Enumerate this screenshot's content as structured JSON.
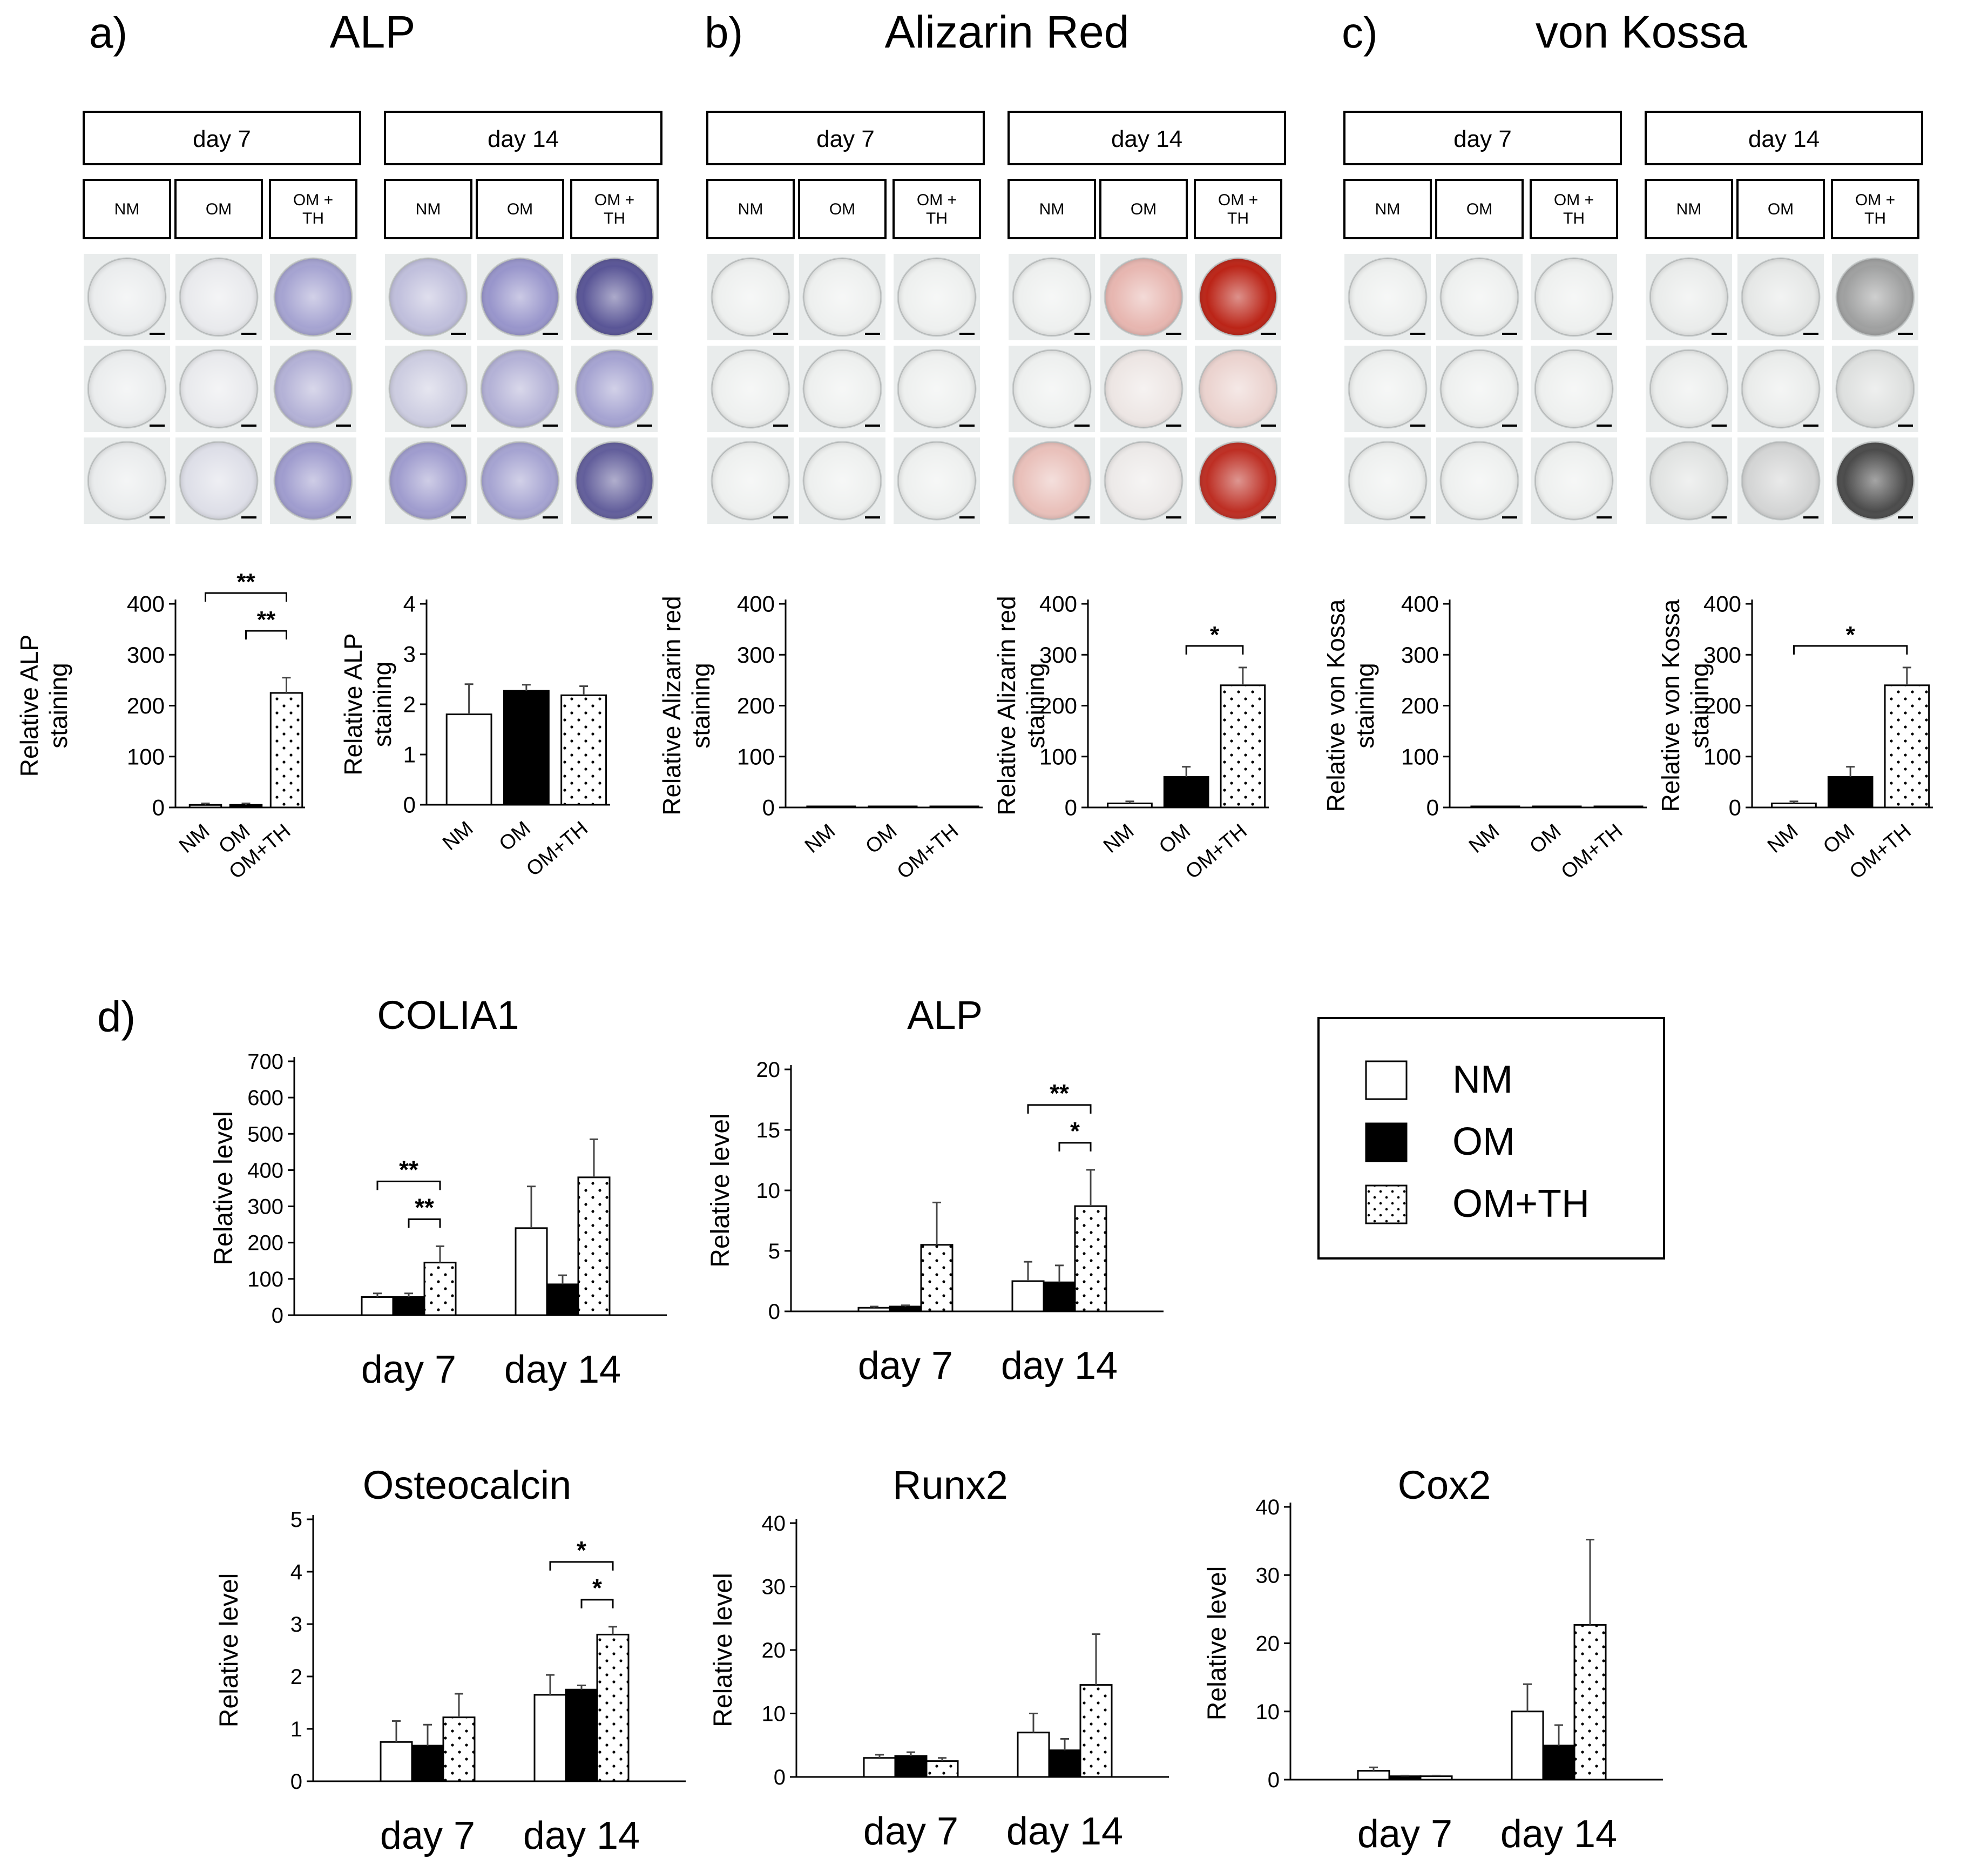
{
  "colors": {
    "axis": "#000000",
    "om_fill": "#000000",
    "nm_fill": "#ffffff",
    "omth_dots": "#000000",
    "alp_stain": "#6a64b8",
    "alp_stain_dark": "#3f3a86",
    "alizarin_stain": "#d8301c",
    "vonkossa_stain": "#6b6b6b",
    "plate_bg": "#e9ecec"
  },
  "legend": {
    "items": [
      {
        "key": "NM",
        "label": "NM"
      },
      {
        "key": "OM",
        "label": "OM"
      },
      {
        "key": "OMTH",
        "label": "OM+TH"
      }
    ]
  },
  "staining_panels": [
    {
      "letter": "a)",
      "title": "ALP",
      "stain": "alp",
      "groups": [
        {
          "day": "day 7",
          "columns": [
            "NM",
            "OM",
            "OM +\nTH"
          ],
          "intensity": [
            [
              0.02,
              0.04,
              0.55
            ],
            [
              0.02,
              0.04,
              0.45
            ],
            [
              0.03,
              0.12,
              0.6
            ]
          ]
        },
        {
          "day": "day 14",
          "columns": [
            "NM",
            "OM",
            "OM +\nTH"
          ],
          "intensity": [
            [
              0.35,
              0.65,
              0.85
            ],
            [
              0.25,
              0.45,
              0.55
            ],
            [
              0.6,
              0.55,
              0.8
            ]
          ]
        }
      ]
    },
    {
      "letter": "b)",
      "title": "Alizarin Red",
      "stain": "alizarin",
      "groups": [
        {
          "day": "day 7",
          "columns": [
            "NM",
            "OM",
            "OM +\nTH"
          ],
          "intensity": [
            [
              0.0,
              0.0,
              0.0
            ],
            [
              0.0,
              0.0,
              0.0
            ],
            [
              0.0,
              0.0,
              0.0
            ]
          ]
        },
        {
          "day": "day 14",
          "columns": [
            "NM",
            "OM",
            "OM +\nTH"
          ],
          "intensity": [
            [
              0.0,
              0.3,
              0.95
            ],
            [
              0.0,
              0.05,
              0.15
            ],
            [
              0.25,
              0.03,
              0.9
            ]
          ]
        }
      ]
    },
    {
      "letter": "c)",
      "title": "von Kossa",
      "stain": "vonkossa",
      "groups": [
        {
          "day": "day 7",
          "columns": [
            "NM",
            "OM",
            "OM +\nTH"
          ],
          "intensity": [
            [
              0.0,
              0.0,
              0.0
            ],
            [
              0.0,
              0.0,
              0.0
            ],
            [
              0.0,
              0.0,
              0.0
            ]
          ]
        },
        {
          "day": "day 14",
          "columns": [
            "NM",
            "OM",
            "OM +\nTH"
          ],
          "intensity": [
            [
              0.03,
              0.06,
              0.6
            ],
            [
              0.02,
              0.03,
              0.12
            ],
            [
              0.1,
              0.2,
              0.85
            ]
          ]
        }
      ]
    }
  ],
  "chart_data": [
    {
      "id": "alp-d7",
      "type": "bar",
      "title": "",
      "ylabel": "Relative  ALP\nstaining",
      "categories": [
        "NM",
        "OM",
        "OM+TH"
      ],
      "values": [
        5,
        5,
        225
      ],
      "errors": [
        3,
        3,
        30
      ],
      "ylim": [
        0,
        400
      ],
      "yticks": [
        0,
        100,
        200,
        300,
        400
      ],
      "significance": [
        {
          "from": 0,
          "to": 2,
          "label": "**"
        },
        {
          "from": 1,
          "to": 2,
          "label": "**"
        }
      ]
    },
    {
      "id": "alp-d14",
      "type": "bar",
      "title": "",
      "ylabel": "Relative  ALP\nstaining",
      "categories": [
        "NM",
        "OM",
        "OM+TH"
      ],
      "values": [
        1.8,
        2.27,
        2.18
      ],
      "errors": [
        0.6,
        0.12,
        0.18
      ],
      "ylim": [
        0,
        4
      ],
      "yticks": [
        0,
        1,
        2,
        3,
        4
      ],
      "significance": []
    },
    {
      "id": "ar-d7",
      "type": "bar",
      "title": "",
      "ylabel": "Relative Alizarin red\nstaining",
      "categories": [
        "NM",
        "OM",
        "OM+TH"
      ],
      "values": [
        0.5,
        0.5,
        0.5
      ],
      "errors": [
        0,
        0,
        0
      ],
      "ylim": [
        0,
        400
      ],
      "yticks": [
        0,
        100,
        200,
        300,
        400
      ],
      "significance": []
    },
    {
      "id": "ar-d14",
      "type": "bar",
      "title": "",
      "ylabel": "Relative Alizarin red\nstaining",
      "categories": [
        "NM",
        "OM",
        "OM+TH"
      ],
      "values": [
        8,
        60,
        240
      ],
      "errors": [
        4,
        20,
        35
      ],
      "ylim": [
        0,
        400
      ],
      "yticks": [
        0,
        100,
        200,
        300,
        400
      ],
      "significance": [
        {
          "from": 1,
          "to": 2,
          "label": "*"
        }
      ]
    },
    {
      "id": "vk-d7",
      "type": "bar",
      "title": "",
      "ylabel": "Relative von Kossa\nstaining",
      "categories": [
        "NM",
        "OM",
        "OM+TH"
      ],
      "values": [
        0.5,
        0.5,
        0.5
      ],
      "errors": [
        0,
        0,
        0
      ],
      "ylim": [
        0,
        400
      ],
      "yticks": [
        0,
        100,
        200,
        300,
        400
      ],
      "significance": []
    },
    {
      "id": "vk-d14",
      "type": "bar",
      "title": "",
      "ylabel": "Relative von Kossa\nstaining",
      "categories": [
        "NM",
        "OM",
        "OM+TH"
      ],
      "values": [
        8,
        60,
        240
      ],
      "errors": [
        4,
        20,
        35
      ],
      "ylim": [
        0,
        400
      ],
      "yticks": [
        0,
        100,
        200,
        300,
        400
      ],
      "significance": [
        {
          "from": 0,
          "to": 2,
          "label": "*"
        }
      ]
    },
    {
      "id": "colia1",
      "type": "bar",
      "title": "COLIA1",
      "ylabel": "Relative level",
      "groups": [
        "day 7",
        "day 14"
      ],
      "series": [
        {
          "name": "NM",
          "values": [
            50,
            240
          ],
          "errors": [
            10,
            115
          ]
        },
        {
          "name": "OM",
          "values": [
            50,
            85
          ],
          "errors": [
            10,
            25
          ]
        },
        {
          "name": "OM+TH",
          "values": [
            145,
            380
          ],
          "errors": [
            45,
            105
          ]
        }
      ],
      "ylim": [
        0,
        700
      ],
      "yticks": [
        0,
        100,
        200,
        300,
        400,
        500,
        600,
        700
      ],
      "significance": [
        {
          "group": 0,
          "from": 0,
          "to": 2,
          "label": "**"
        },
        {
          "group": 0,
          "from": 1,
          "to": 2,
          "label": "**"
        }
      ]
    },
    {
      "id": "alp-gene",
      "type": "bar",
      "title": "ALP",
      "ylabel": "Relative level",
      "groups": [
        "day 7",
        "day 14"
      ],
      "series": [
        {
          "name": "NM",
          "values": [
            0.3,
            2.5
          ],
          "errors": [
            0.1,
            1.6
          ]
        },
        {
          "name": "OM",
          "values": [
            0.4,
            2.4
          ],
          "errors": [
            0.1,
            1.4
          ]
        },
        {
          "name": "OM+TH",
          "values": [
            5.5,
            8.7
          ],
          "errors": [
            3.5,
            3.0
          ]
        }
      ],
      "ylim": [
        0,
        20
      ],
      "yticks": [
        0,
        5,
        10,
        15,
        20
      ],
      "significance": [
        {
          "group": 1,
          "from": 0,
          "to": 2,
          "label": "**"
        },
        {
          "group": 1,
          "from": 1,
          "to": 2,
          "label": "*"
        }
      ]
    },
    {
      "id": "osteocalcin",
      "type": "bar",
      "title": "Osteocalcin",
      "ylabel": "Relative level",
      "groups": [
        "day 7",
        "day 14"
      ],
      "series": [
        {
          "name": "NM",
          "values": [
            0.75,
            1.65
          ],
          "errors": [
            0.4,
            0.38
          ]
        },
        {
          "name": "OM",
          "values": [
            0.68,
            1.75
          ],
          "errors": [
            0.4,
            0.08
          ]
        },
        {
          "name": "OM+TH",
          "values": [
            1.22,
            2.8
          ],
          "errors": [
            0.45,
            0.15
          ]
        }
      ],
      "ylim": [
        0,
        5
      ],
      "yticks": [
        0,
        1,
        2,
        3,
        4,
        5
      ],
      "significance": [
        {
          "group": 1,
          "from": 0,
          "to": 2,
          "label": "*"
        },
        {
          "group": 1,
          "from": 1,
          "to": 2,
          "label": "*"
        }
      ]
    },
    {
      "id": "runx2",
      "type": "bar",
      "title": "Runx2",
      "ylabel": "Relative level",
      "groups": [
        "day 7",
        "day 14"
      ],
      "series": [
        {
          "name": "NM",
          "values": [
            3,
            7
          ],
          "errors": [
            0.5,
            3
          ]
        },
        {
          "name": "OM",
          "values": [
            3.3,
            4.2
          ],
          "errors": [
            0.6,
            1.8
          ]
        },
        {
          "name": "OM+TH",
          "values": [
            2.5,
            14.5
          ],
          "errors": [
            0.5,
            8
          ]
        }
      ],
      "ylim": [
        0,
        40
      ],
      "yticks": [
        0,
        10,
        20,
        30,
        40
      ],
      "significance": []
    },
    {
      "id": "cox2",
      "type": "bar",
      "title": "Cox2",
      "ylabel": "Relative level",
      "groups": [
        "day 7",
        "day 14"
      ],
      "series": [
        {
          "name": "NM",
          "values": [
            1.3,
            10
          ],
          "errors": [
            0.5,
            4
          ]
        },
        {
          "name": "OM",
          "values": [
            0.5,
            5
          ],
          "errors": [
            0.1,
            3
          ]
        },
        {
          "name": "OM+TH",
          "values": [
            0.5,
            22.7
          ],
          "errors": [
            0.1,
            12.5
          ]
        }
      ],
      "ylim": [
        0,
        40
      ],
      "yticks": [
        0,
        10,
        20,
        30,
        40
      ],
      "significance": []
    }
  ],
  "section_d": {
    "letter": "d)"
  }
}
